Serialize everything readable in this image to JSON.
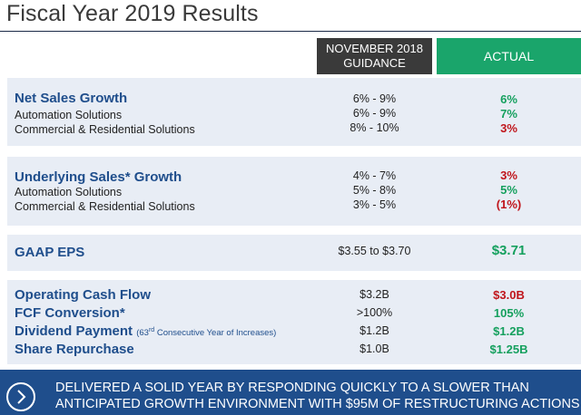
{
  "title": "Fiscal Year 2019 Results",
  "header": {
    "guidance_line1": "NOVEMBER 2018",
    "guidance_line2": "GUIDANCE",
    "actual": "ACTUAL"
  },
  "net_sales": {
    "label": "Net Sales Growth",
    "guidance": "6% - 9%",
    "actual": "6%",
    "rows": [
      {
        "label": "Automation Solutions",
        "guidance": "6% - 9%",
        "actual": "7%"
      },
      {
        "label": "Commercial & Residential Solutions",
        "guidance": "8% - 10%",
        "actual": "3%"
      }
    ]
  },
  "underlying": {
    "label": "Underlying Sales* Growth",
    "guidance": "4% - 7%",
    "actual": "3%",
    "rows": [
      {
        "label": "Automation Solutions",
        "guidance": "5% - 8%",
        "actual": "5%"
      },
      {
        "label": "Commercial & Residential Solutions",
        "guidance": "3% - 5%",
        "actual": "(1%)"
      }
    ]
  },
  "gaap": {
    "label": "GAAP EPS",
    "guidance": "$3.55 to $3.70",
    "actual": "$3.71"
  },
  "cash": {
    "ocf": {
      "label": "Operating Cash Flow",
      "guidance": "$3.2B",
      "actual": "$3.0B"
    },
    "fcf": {
      "label": "FCF Conversion*",
      "guidance": ">100%",
      "actual": "105%"
    },
    "dividend": {
      "label": "Dividend Payment",
      "note_pre": "(63",
      "note_sup": "rd",
      "note_post": " Consecutive Year of Increases)",
      "guidance": "$1.2B",
      "actual": "$1.2B"
    },
    "repurchase": {
      "label": "Share Repurchase",
      "guidance": "$1.0B",
      "actual": "$1.25B"
    }
  },
  "banner": {
    "line1": "DELIVERED A SOLID YEAR BY RESPONDING QUICKLY TO A SLOWER THAN",
    "line2": "ANTICIPATED GROWTH ENVIRONMENT WITH $95M OF RESTRUCTURING ACTIONS",
    "icon": "chevron-right-icon"
  },
  "colors": {
    "brand_blue": "#1f4e8c",
    "actual_green": "#1aa56b",
    "negative_red": "#c0151b",
    "guidance_dark": "#3a3a3a"
  }
}
